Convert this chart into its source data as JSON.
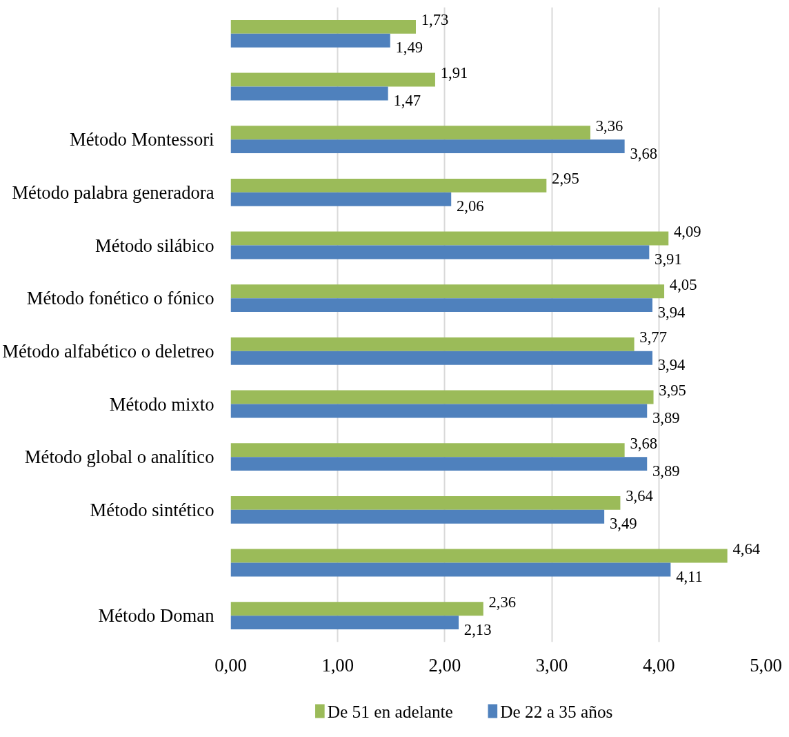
{
  "chart_data": {
    "type": "bar",
    "orientation": "horizontal",
    "categories": [
      null,
      null,
      "Método Montessori",
      "Método palabra generadora",
      "Método silábico",
      "Método fonético o fónico",
      "Método alfabético o deletreo",
      "Método mixto",
      "Método global o analítico",
      "Método sintético",
      null,
      "Método Doman"
    ],
    "series": [
      {
        "name": "De 51 en adelante",
        "color": "#9bbb59",
        "values": [
          1.73,
          1.91,
          3.36,
          2.95,
          4.09,
          4.05,
          3.77,
          3.95,
          3.68,
          3.64,
          4.64,
          2.36
        ],
        "value_labels": [
          "1,73",
          "1,91",
          "3,36",
          "2,95",
          "4,09",
          "4,05",
          "3,77",
          "3,95",
          "3,68",
          "3,64",
          "4,64",
          "2,36"
        ]
      },
      {
        "name": "De 22 a 35 años",
        "color": "#4f81bd",
        "values": [
          1.49,
          1.47,
          3.68,
          2.06,
          3.91,
          3.94,
          3.94,
          3.89,
          3.89,
          3.49,
          4.11,
          2.13
        ],
        "value_labels": [
          "1,49",
          "1,47",
          "3,68",
          "2,06",
          "3,91",
          "3,94",
          "3,94",
          "3,89",
          "3,89",
          "3,49",
          "4,11",
          "2,13"
        ]
      }
    ],
    "xlim": [
      0,
      5
    ],
    "xticks": [
      {
        "value": 0,
        "label": "0,00"
      },
      {
        "value": 1,
        "label": "1,00"
      },
      {
        "value": 2,
        "label": "2,00"
      },
      {
        "value": 3,
        "label": "3,00"
      },
      {
        "value": 4,
        "label": "4,00"
      },
      {
        "value": 5,
        "label": "5,00"
      }
    ],
    "grid": "x",
    "legend": "bottom"
  }
}
